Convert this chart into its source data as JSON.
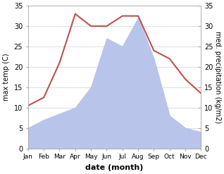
{
  "months": [
    "Jan",
    "Feb",
    "Mar",
    "Apr",
    "May",
    "Jun",
    "Jul",
    "Aug",
    "Sep",
    "Oct",
    "Nov",
    "Dec"
  ],
  "temperature": [
    10.5,
    12.5,
    21.0,
    33.0,
    30.0,
    30.0,
    32.5,
    32.5,
    24.0,
    22.0,
    17.0,
    13.5
  ],
  "precipitation": [
    5.0,
    7.0,
    8.5,
    10.0,
    15.0,
    27.0,
    25.0,
    32.0,
    22.0,
    8.0,
    5.0,
    4.0
  ],
  "temp_color": "#c0504d",
  "precip_color": "#b8c4ea",
  "ylim": [
    0,
    35
  ],
  "yticks": [
    0,
    5,
    10,
    15,
    20,
    25,
    30,
    35
  ],
  "xlabel": "date (month)",
  "ylabel_left": "max temp (C)",
  "ylabel_right": "med. precipitation (kg/m2)",
  "background_color": "#ffffff",
  "grid_color": "#d0d0d0",
  "tick_color": "#555555",
  "spine_color": "#aaaaaa"
}
